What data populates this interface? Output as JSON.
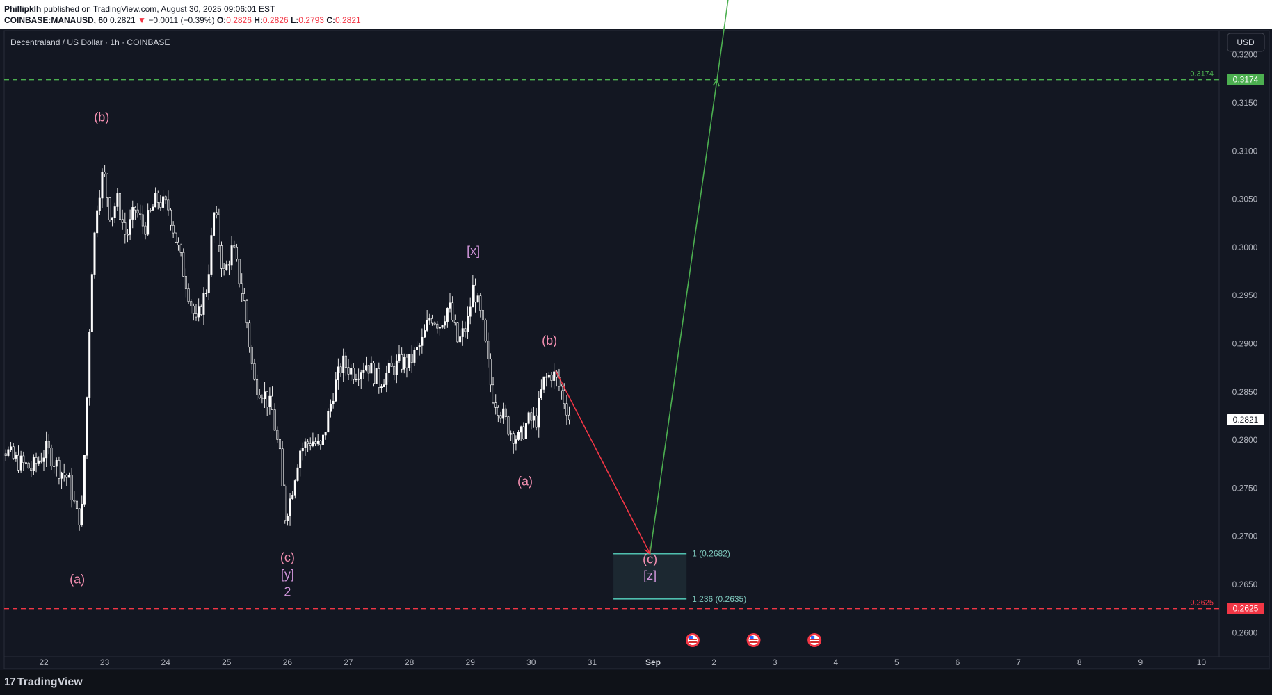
{
  "header": {
    "author": "Phillipklh",
    "published_text": "published on TradingView.com, August 30, 2025 09:06:01 EST",
    "symbol_line": "COINBASE:MANAUSD, 60",
    "last": "0.2821",
    "change_arrow": "▼",
    "change": "−0.0011 (−0.39%)",
    "o_label": "O:",
    "o_value": "0.2826",
    "h_label": "H:",
    "h_value": "0.2826",
    "l_label": "L:",
    "l_value": "0.2793",
    "c_label": "C:",
    "c_value": "0.2821"
  },
  "footer": {
    "logo_mark": "17",
    "logo_text": "TradingView"
  },
  "chart_data": {
    "type": "candlestick",
    "title": "Decentraland / US Dollar · 1h · COINBASE",
    "currency_button": "USD",
    "y_ticks": [
      "0.3200",
      "0.3150",
      "0.3100",
      "0.3050",
      "0.3000",
      "0.2950",
      "0.2900",
      "0.2850",
      "0.2800",
      "0.2750",
      "0.2700",
      "0.2650",
      "0.2600"
    ],
    "x_ticks": [
      "22",
      "23",
      "24",
      "25",
      "26",
      "27",
      "28",
      "29",
      "30",
      "31",
      "Sep",
      "2",
      "3",
      "4",
      "5",
      "6",
      "7",
      "8",
      "9",
      "10"
    ],
    "ylim": [
      0.2575,
      0.3225
    ],
    "last_price": {
      "label": "0.2821",
      "value": 0.2821
    },
    "price_lines": [
      {
        "value": 0.3174,
        "label": "0.3174",
        "color": "#4caf50",
        "style": "dashed"
      },
      {
        "value": 0.2625,
        "label": "0.2625",
        "color": "#f23645",
        "style": "dashed"
      }
    ],
    "fib_levels": [
      {
        "ratio": "1",
        "value": 0.2682,
        "label": "1 (0.2682)"
      },
      {
        "ratio": "1.236",
        "value": 0.2635,
        "label": "1.236 (0.2635)"
      }
    ],
    "wave_labels": [
      {
        "text": "(a)",
        "time": 22.55,
        "price": 0.2651,
        "color": "#f48fb1"
      },
      {
        "text": "(b)",
        "time": 22.95,
        "price": 0.3131,
        "color": "#f48fb1"
      },
      {
        "text": "(c)",
        "time": 26.0,
        "price": 0.2674,
        "color": "#f48fb1"
      },
      {
        "text": "[y]",
        "time": 26.0,
        "price": 0.2656,
        "color": "#ce93d8"
      },
      {
        "text": "2",
        "time": 26.0,
        "price": 0.2638,
        "color": "#ce93d8"
      },
      {
        "text": "[x]",
        "time": 29.05,
        "price": 0.2992,
        "color": "#ce93d8"
      },
      {
        "text": "(a)",
        "time": 29.9,
        "price": 0.2753,
        "color": "#f48fb1"
      },
      {
        "text": "(b)",
        "time": 30.3,
        "price": 0.2899,
        "color": "#f48fb1"
      },
      {
        "text": "(c)",
        "time": 31.95,
        "price": 0.2672,
        "color": "#f48fb1"
      },
      {
        "text": "[z]",
        "time": 31.95,
        "price": 0.2655,
        "color": "#ce93d8"
      }
    ],
    "projection": [
      {
        "name": "down leg",
        "color": "#f23645",
        "points": [
          [
            30.4,
            0.2872
          ],
          [
            31.95,
            0.2682
          ]
        ]
      },
      {
        "name": "up leg",
        "color": "#4caf50",
        "points": [
          [
            31.95,
            0.2682
          ],
          [
            33.05,
            0.3174
          ],
          [
            33.5,
            0.338
          ]
        ]
      }
    ],
    "event_icons_time": [
      32.65,
      33.65,
      34.65
    ],
    "ohlc_keypoints": [
      [
        21.0,
        0.2835
      ],
      [
        21.25,
        0.28
      ],
      [
        21.5,
        0.278
      ],
      [
        21.8,
        0.277
      ],
      [
        22.05,
        0.279
      ],
      [
        22.25,
        0.277
      ],
      [
        22.4,
        0.276
      ],
      [
        22.55,
        0.272
      ],
      [
        22.62,
        0.272
      ],
      [
        22.7,
        0.283
      ],
      [
        22.78,
        0.297
      ],
      [
        22.88,
        0.305
      ],
      [
        22.98,
        0.308
      ],
      [
        23.1,
        0.303
      ],
      [
        23.2,
        0.305
      ],
      [
        23.35,
        0.301
      ],
      [
        23.5,
        0.304
      ],
      [
        23.65,
        0.302
      ],
      [
        23.85,
        0.305
      ],
      [
        24.05,
        0.304
      ],
      [
        24.2,
        0.3
      ],
      [
        24.35,
        0.296
      ],
      [
        24.5,
        0.292
      ],
      [
        24.68,
        0.296
      ],
      [
        24.8,
        0.304
      ],
      [
        24.95,
        0.297
      ],
      [
        25.1,
        0.3
      ],
      [
        25.3,
        0.294
      ],
      [
        25.45,
        0.286
      ],
      [
        25.6,
        0.285
      ],
      [
        25.75,
        0.283
      ],
      [
        25.88,
        0.278
      ],
      [
        25.95,
        0.272
      ],
      [
        26.05,
        0.274
      ],
      [
        26.2,
        0.279
      ],
      [
        26.4,
        0.28
      ],
      [
        26.55,
        0.279
      ],
      [
        26.75,
        0.285
      ],
      [
        26.9,
        0.288
      ],
      [
        27.1,
        0.287
      ],
      [
        27.3,
        0.288
      ],
      [
        27.5,
        0.286
      ],
      [
        27.65,
        0.287
      ],
      [
        27.85,
        0.288
      ],
      [
        28.0,
        0.288
      ],
      [
        28.2,
        0.29
      ],
      [
        28.35,
        0.293
      ],
      [
        28.5,
        0.292
      ],
      [
        28.65,
        0.294
      ],
      [
        28.8,
        0.29
      ],
      [
        28.95,
        0.292
      ],
      [
        29.05,
        0.296
      ],
      [
        29.2,
        0.292
      ],
      [
        29.35,
        0.285
      ],
      [
        29.5,
        0.283
      ],
      [
        29.65,
        0.281
      ],
      [
        29.8,
        0.28
      ],
      [
        29.95,
        0.282
      ],
      [
        30.08,
        0.282
      ],
      [
        30.2,
        0.286
      ],
      [
        30.35,
        0.287
      ],
      [
        30.5,
        0.285
      ],
      [
        30.65,
        0.2821
      ]
    ]
  }
}
